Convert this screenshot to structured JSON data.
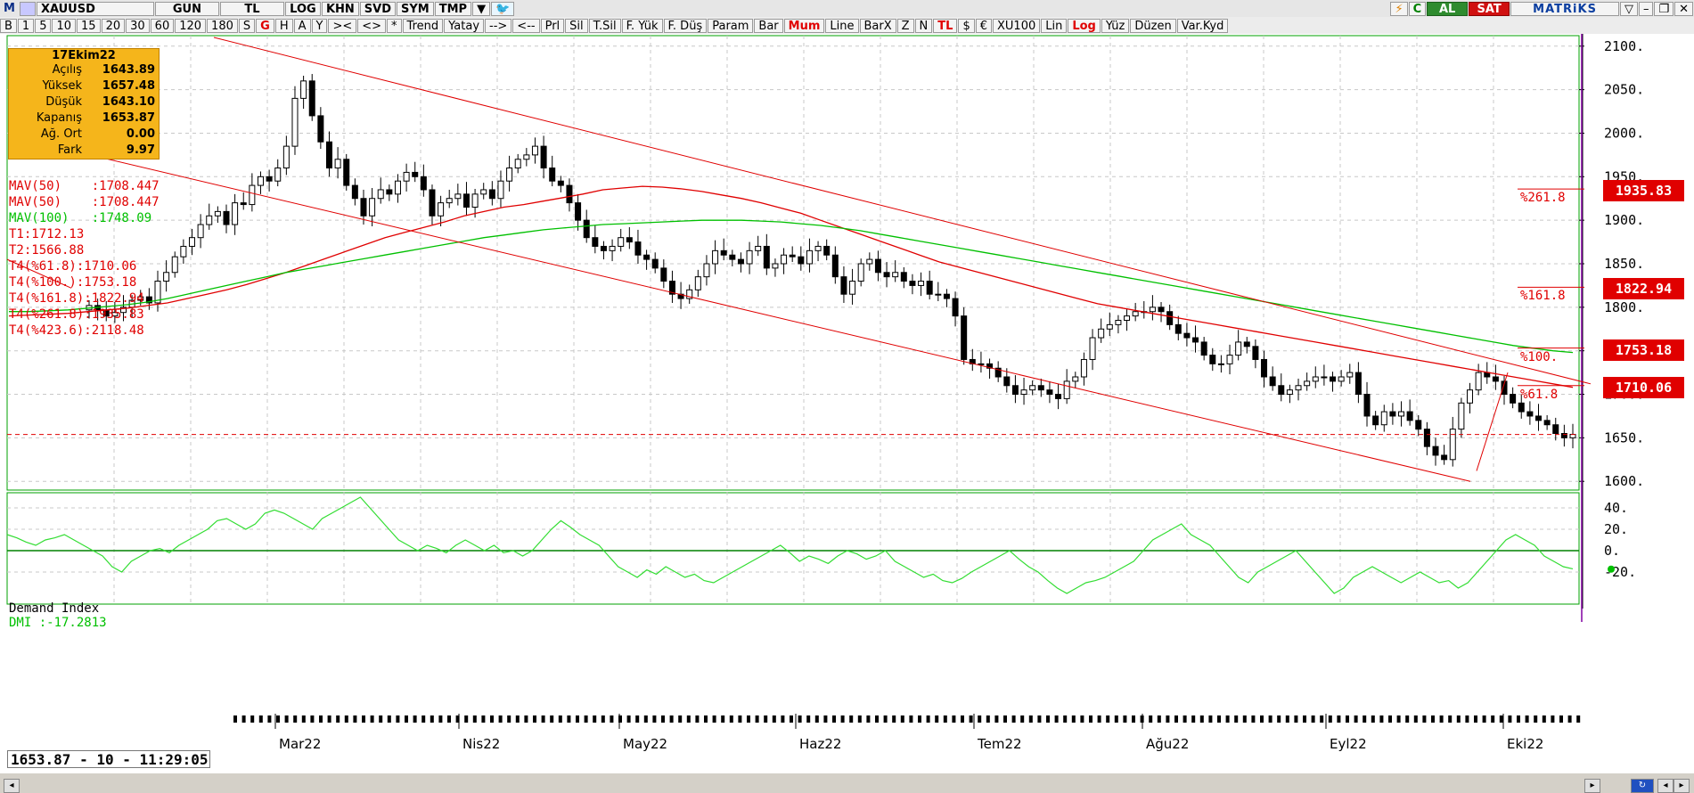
{
  "toolbar1": {
    "m_icon": "M",
    "symbol": "XAUUSD",
    "period": "GUN",
    "currency": "TL",
    "buttons": [
      "LOG",
      "KHN",
      "SVD",
      "SYM",
      "TMP"
    ],
    "al": "AL",
    "sat": "SAT",
    "brand": "MATRiKS"
  },
  "toolbar2": {
    "items": [
      "B",
      "1",
      "5",
      "10",
      "15",
      "20",
      "30",
      "60",
      "120",
      "180",
      "S",
      "G",
      "H",
      "A",
      "Y",
      ">< ",
      "<>",
      "*",
      "Trend",
      "Yatay",
      "-->",
      "<--",
      "Prl",
      "Sil",
      "T.Sil",
      "F. Yük",
      "F. Düş",
      "Param",
      "Bar",
      "Mum",
      "Line",
      "BarX",
      "Z",
      "N",
      "TL",
      "$",
      "€",
      "XU100",
      "Lin",
      "Log",
      "Yüz",
      "Düzen",
      "Var.Kyd"
    ],
    "red_items": [
      "G",
      "Mum",
      "TL",
      "Log"
    ]
  },
  "infobox": {
    "title": "17Ekim22",
    "rows": [
      {
        "k": "Açılış",
        "v": "1643.89"
      },
      {
        "k": "Yüksek",
        "v": "1657.48"
      },
      {
        "k": "Düşük",
        "v": "1643.10"
      },
      {
        "k": "Kapanış",
        "v": "1653.87"
      },
      {
        "k": "Ağ. Ort",
        "v": "0.00"
      },
      {
        "k": "Fark",
        "v": "9.97"
      }
    ]
  },
  "legend": [
    {
      "text": "MAV(50)    :1708.447",
      "color": "red"
    },
    {
      "text": "MAV(50)    :1708.447",
      "color": "red"
    },
    {
      "text": "MAV(100)   :1748.09",
      "color": "green"
    },
    {
      "text": "T1:1712.13",
      "color": "red"
    },
    {
      "text": "T2:1566.88",
      "color": "red"
    },
    {
      "text": "T4(%61.8):1710.06",
      "color": "red"
    },
    {
      "text": "T4(%100.):1753.18",
      "color": "red"
    },
    {
      "text": "T4(%161.8):1822.94",
      "color": "red"
    },
    {
      "text": "T4(%261.8):1935.83",
      "color": "red"
    },
    {
      "text": "T4(%423.6):2118.48",
      "color": "red"
    }
  ],
  "fib_tags": [
    {
      "label": "%261.8",
      "value": "1935.83",
      "price": 1935.83
    },
    {
      "label": "%161.8",
      "value": "1822.94",
      "price": 1822.94
    },
    {
      "label": "%100.",
      "value": "1753.18",
      "price": 1753.18
    },
    {
      "label": "%61.8",
      "value": "1710.06",
      "price": 1710.06
    }
  ],
  "dmi": {
    "title": "Demand Index",
    "label": "DMI     :-17.2813"
  },
  "status": "1653.87 - 10 - 11:29:05",
  "chart_data": {
    "type": "candlestick",
    "price_axis": {
      "min": 1590,
      "max": 2110,
      "ticks": [
        2100,
        2050,
        2000,
        1950,
        1900,
        1850,
        1800,
        1750,
        1700,
        1650,
        1600
      ]
    },
    "months": [
      "Mar22",
      "Nis22",
      "May22",
      "Haz22",
      "Tem22",
      "Ağu22",
      "Eyl22",
      "Eki22"
    ],
    "last_price": 1653.87,
    "closes": [
      1802,
      1797,
      1790,
      1794,
      1800,
      1808,
      1812,
      1805,
      1830,
      1840,
      1858,
      1870,
      1880,
      1895,
      1905,
      1910,
      1895,
      1920,
      1918,
      1940,
      1950,
      1945,
      1960,
      1985,
      2040,
      2060,
      2020,
      1990,
      1960,
      1970,
      1940,
      1925,
      1905,
      1925,
      1935,
      1930,
      1945,
      1955,
      1950,
      1935,
      1905,
      1920,
      1925,
      1930,
      1915,
      1930,
      1935,
      1925,
      1945,
      1960,
      1970,
      1975,
      1985,
      1960,
      1945,
      1940,
      1920,
      1900,
      1880,
      1870,
      1865,
      1870,
      1880,
      1875,
      1860,
      1855,
      1845,
      1830,
      1815,
      1810,
      1820,
      1835,
      1850,
      1865,
      1860,
      1855,
      1850,
      1865,
      1870,
      1845,
      1850,
      1860,
      1858,
      1850,
      1865,
      1870,
      1860,
      1835,
      1815,
      1830,
      1850,
      1855,
      1840,
      1835,
      1840,
      1830,
      1825,
      1830,
      1815,
      1815,
      1810,
      1790,
      1740,
      1735,
      1735,
      1730,
      1720,
      1710,
      1700,
      1705,
      1710,
      1705,
      1700,
      1695,
      1715,
      1720,
      1740,
      1765,
      1775,
      1780,
      1785,
      1790,
      1795,
      1795,
      1800,
      1795,
      1780,
      1770,
      1765,
      1760,
      1745,
      1735,
      1735,
      1745,
      1760,
      1755,
      1740,
      1720,
      1710,
      1700,
      1705,
      1710,
      1715,
      1720,
      1720,
      1715,
      1720,
      1725,
      1700,
      1675,
      1665,
      1680,
      1675,
      1680,
      1670,
      1660,
      1640,
      1630,
      1625,
      1660,
      1690,
      1705,
      1725,
      1720,
      1715,
      1700,
      1690,
      1680,
      1675,
      1670,
      1665,
      1655,
      1650,
      1654
    ],
    "mav50": [
      1790,
      1791,
      1792,
      1793,
      1795,
      1797,
      1799,
      1802,
      1805,
      1810,
      1815,
      1820,
      1826,
      1833,
      1840,
      1848,
      1856,
      1864,
      1872,
      1880,
      1886,
      1892,
      1898,
      1905,
      1910,
      1915,
      1918,
      1922,
      1926,
      1930,
      1935,
      1937,
      1939,
      1938,
      1936,
      1933,
      1929,
      1925,
      1920,
      1914,
      1908,
      1900,
      1892,
      1884,
      1876,
      1868,
      1860,
      1852,
      1846,
      1840,
      1834,
      1828,
      1822,
      1816,
      1810,
      1804,
      1800,
      1796,
      1792,
      1788,
      1784,
      1780,
      1776,
      1772,
      1768,
      1764,
      1760,
      1756,
      1752,
      1748,
      1744,
      1740,
      1736,
      1732,
      1728,
      1724,
      1720,
      1716,
      1712,
      1708
    ],
    "mav100": [
      1795,
      1795,
      1796,
      1797,
      1799,
      1801,
      1803,
      1806,
      1810,
      1815,
      1820,
      1825,
      1830,
      1835,
      1840,
      1844,
      1848,
      1852,
      1856,
      1860,
      1864,
      1868,
      1872,
      1876,
      1880,
      1883,
      1886,
      1889,
      1891,
      1893,
      1895,
      1896,
      1897,
      1898,
      1899,
      1900,
      1900,
      1900,
      1899,
      1898,
      1896,
      1894,
      1891,
      1888,
      1884,
      1880,
      1876,
      1872,
      1868,
      1864,
      1860,
      1856,
      1852,
      1848,
      1844,
      1840,
      1836,
      1832,
      1828,
      1824,
      1820,
      1816,
      1812,
      1808,
      1804,
      1800,
      1796,
      1792,
      1788,
      1784,
      1780,
      1776,
      1772,
      1768,
      1764,
      1760,
      1756,
      1753,
      1750,
      1748
    ],
    "dmi": [
      15,
      12,
      8,
      5,
      10,
      12,
      15,
      10,
      5,
      0,
      -5,
      -15,
      -20,
      -10,
      -5,
      0,
      2,
      -2,
      5,
      10,
      15,
      20,
      28,
      30,
      25,
      20,
      25,
      35,
      38,
      35,
      30,
      25,
      20,
      30,
      35,
      40,
      45,
      50,
      40,
      30,
      20,
      10,
      5,
      0,
      5,
      2,
      -2,
      5,
      10,
      5,
      0,
      5,
      -2,
      0,
      -5,
      0,
      10,
      20,
      28,
      22,
      15,
      10,
      5,
      -5,
      -15,
      -20,
      -25,
      -18,
      -22,
      -15,
      -20,
      -25,
      -22,
      -28,
      -30,
      -25,
      -20,
      -15,
      -10,
      -5,
      0,
      5,
      -2,
      -10,
      -5,
      -8,
      -12,
      -5,
      0,
      -3,
      -8,
      -5,
      0,
      -10,
      -15,
      -20,
      -25,
      -22,
      -28,
      -30,
      -26,
      -20,
      -15,
      -10,
      -5,
      0,
      -8,
      -15,
      -20,
      -28,
      -35,
      -40,
      -35,
      -30,
      -28,
      -25,
      -20,
      -15,
      -10,
      0,
      10,
      15,
      20,
      25,
      15,
      10,
      5,
      -5,
      -15,
      -25,
      -30,
      -20,
      -15,
      -10,
      -5,
      0,
      -10,
      -20,
      -30,
      -40,
      -35,
      -25,
      -20,
      -15,
      -20,
      -25,
      -30,
      -25,
      -20,
      -25,
      -30,
      -28,
      -35,
      -30,
      -20,
      -10,
      0,
      10,
      15,
      10,
      5,
      -5,
      -10,
      -15,
      -17
    ]
  }
}
